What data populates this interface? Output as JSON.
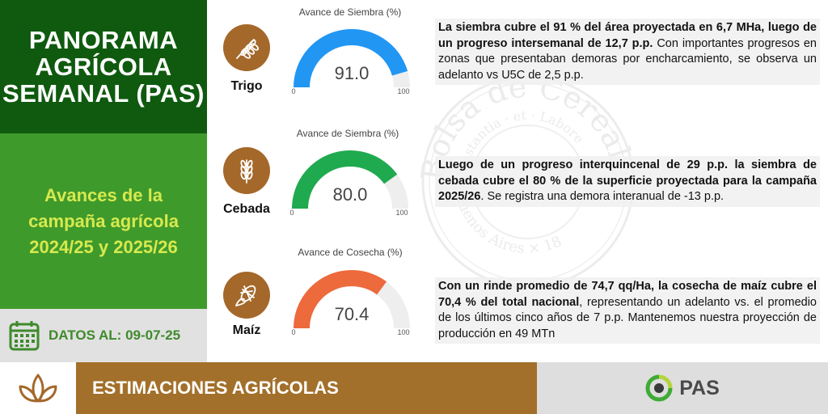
{
  "header": {
    "title": "PANORAMA AGRÍCOLA SEMANAL (PAS)",
    "subtitle": "Avances de la campaña agrícola 2024/25 y 2025/26",
    "date_label": "DATOS AL: 09-07-25"
  },
  "crops": [
    {
      "name": "Trigo",
      "icon": "wheat-icon",
      "gauge_title": "Avance de Siembra (%)",
      "value": 91.0,
      "value_text": "91.0",
      "min": "0",
      "max": "100",
      "color": "#2196f3",
      "desc_bold": "La siembra cubre el 91 % del área proyectada en 6,7 MHa, luego de un progreso intersemanal de 12,7 p.p.",
      "desc_rest": " Con importantes progresos en zonas que presentaban demoras por encharcamiento, se observa un adelanto vs U5C de 2,5 p.p."
    },
    {
      "name": "Cebada",
      "icon": "barley-icon",
      "gauge_title": "Avance de Siembra (%)",
      "value": 80.0,
      "value_text": "80.0",
      "min": "0",
      "max": "100",
      "color": "#1faa4f",
      "desc_bold": "Luego de un progreso interquincenal de 29 p.p. la siembra de cebada cubre el 80 % de la superficie proyectada para la campaña 2025/26",
      "desc_rest": ". Se registra una demora interanual de -13 p.p."
    },
    {
      "name": "Maíz",
      "icon": "corn-icon",
      "gauge_title": "Avance de Cosecha (%)",
      "value": 70.4,
      "value_text": "70.4",
      "min": "0",
      "max": "100",
      "color": "#ec6a3c",
      "desc_bold": "Con un rinde promedio de 74,7 qq/Ha, la cosecha de maíz cubre el 70,4 % del total nacional",
      "desc_rest": ", representando un adelanto vs. el promedio de los últimos cinco años de 7 p.p. Mantenemos nuestra proyección de producción en 49 MTn"
    }
  ],
  "footer": {
    "section_label": "ESTIMACIONES AGRÍCOLAS",
    "brand": "PAS",
    "icon": "leaves-icon"
  },
  "watermark": {
    "text_top": "Bolsa de Cereales",
    "text_motto": "Constantia · et · Labore",
    "text_bottom": "Buenos Aires × 18"
  },
  "colors": {
    "dark_green": "#0f5a0f",
    "mid_green": "#3f9a2c",
    "accent_yellow": "#d7e94e",
    "brown": "#a2702a",
    "gauge_track": "#eeeeee"
  }
}
